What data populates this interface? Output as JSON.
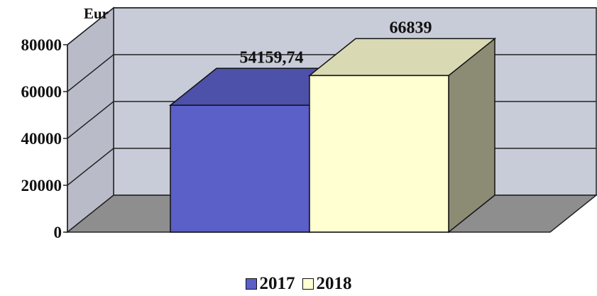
{
  "chart_data": {
    "type": "bar",
    "style": "3d",
    "unit_label": "Eur",
    "categories": [
      ""
    ],
    "series": [
      {
        "name": "2017",
        "values": [
          54159.74
        ],
        "label": "54159,74",
        "color": "#5B5FC8"
      },
      {
        "name": "2018",
        "values": [
          66839
        ],
        "label": "66839",
        "color": "#FFFFD2"
      }
    ],
    "yticks": [
      "0",
      "20000",
      "40000",
      "60000",
      "80000"
    ],
    "ylim": [
      0,
      80000
    ],
    "grid": true,
    "legend_position": "bottom"
  }
}
